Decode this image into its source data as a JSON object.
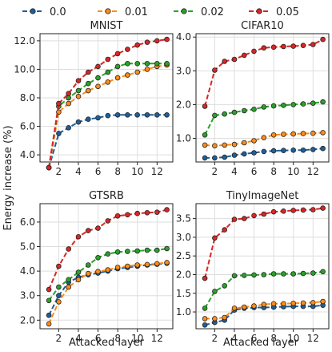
{
  "figure": {
    "ylabel": "Energy increase (%)",
    "xlabel": "Attacked layer"
  },
  "legend": [
    {
      "name": "0.0",
      "color": "#1f5f99"
    },
    {
      "name": "0.01",
      "color": "#ff8c1a"
    },
    {
      "name": "0.02",
      "color": "#2ca02c"
    },
    {
      "name": "0.05",
      "color": "#d62728"
    }
  ],
  "chart_data": [
    {
      "type": "line",
      "title": "MNIST",
      "x": [
        1,
        2,
        3,
        4,
        5,
        6,
        7,
        8,
        9,
        10,
        11,
        12,
        13
      ],
      "xticks": [
        2,
        4,
        6,
        8,
        10,
        12
      ],
      "xlim": [
        0.1,
        13.6
      ],
      "ylim": [
        3.5,
        12.5
      ],
      "yticks": [
        4.0,
        6.0,
        8.0,
        10.0,
        12.0
      ],
      "ytick_labels": [
        "4.0",
        "6.0",
        "8.0",
        "10.0",
        "12.0"
      ],
      "grid": true,
      "series": [
        {
          "name": "0.0",
          "values": [
            3.1,
            5.5,
            5.9,
            6.3,
            6.5,
            6.6,
            6.75,
            6.8,
            6.8,
            6.8,
            6.8,
            6.8,
            6.8
          ]
        },
        {
          "name": "0.01",
          "values": [
            3.1,
            7.0,
            7.6,
            8.1,
            8.5,
            8.8,
            9.1,
            9.4,
            9.6,
            9.8,
            10.0,
            10.2,
            10.3
          ]
        },
        {
          "name": "0.02",
          "values": [
            3.1,
            7.4,
            8.0,
            8.5,
            9.0,
            9.4,
            9.8,
            10.2,
            10.4,
            10.4,
            10.4,
            10.4,
            10.4
          ]
        },
        {
          "name": "0.05",
          "values": [
            3.1,
            7.6,
            8.3,
            9.2,
            9.8,
            10.2,
            10.7,
            11.1,
            11.4,
            11.7,
            11.9,
            12.0,
            12.1
          ]
        }
      ]
    },
    {
      "type": "line",
      "title": "CIFAR10",
      "x": [
        1,
        2,
        3,
        4,
        5,
        6,
        7,
        8,
        9,
        10,
        11,
        12,
        13
      ],
      "xticks": [
        2,
        4,
        6,
        8,
        10,
        12
      ],
      "xlim": [
        0.1,
        13.6
      ],
      "ylim": [
        0.3,
        4.1
      ],
      "yticks": [
        1.0,
        2.0,
        3.0,
        4.0
      ],
      "ytick_labels": [
        "1.0",
        "2.0",
        "3.0",
        "4.0"
      ],
      "grid": true,
      "series": [
        {
          "name": "0.0",
          "values": [
            0.42,
            0.42,
            0.44,
            0.5,
            0.54,
            0.57,
            0.61,
            0.63,
            0.64,
            0.65,
            0.65,
            0.67,
            0.7
          ]
        },
        {
          "name": "0.01",
          "values": [
            0.8,
            0.78,
            0.8,
            0.82,
            0.87,
            0.93,
            1.02,
            1.1,
            1.12,
            1.13,
            1.14,
            1.15,
            1.17
          ]
        },
        {
          "name": "0.02",
          "values": [
            1.1,
            1.68,
            1.72,
            1.77,
            1.82,
            1.86,
            1.93,
            1.96,
            1.98,
            2.0,
            2.02,
            2.04,
            2.08
          ]
        },
        {
          "name": "0.05",
          "values": [
            1.95,
            3.02,
            3.28,
            3.34,
            3.46,
            3.58,
            3.68,
            3.7,
            3.72,
            3.73,
            3.75,
            3.78,
            3.93
          ]
        }
      ]
    },
    {
      "type": "line",
      "title": "GTSRB",
      "x": [
        1,
        2,
        3,
        4,
        5,
        6,
        7,
        8,
        9,
        10,
        11,
        12,
        13
      ],
      "xticks": [
        2,
        4,
        6,
        8,
        10,
        12
      ],
      "xlim": [
        0.1,
        13.6
      ],
      "ylim": [
        1.65,
        6.75
      ],
      "yticks": [
        2.0,
        3.0,
        4.0,
        5.0,
        6.0
      ],
      "ytick_labels": [
        "2.0",
        "3.0",
        "4.0",
        "5.0",
        "6.0"
      ],
      "grid": true,
      "series": [
        {
          "name": "0.0",
          "values": [
            2.2,
            3.0,
            3.55,
            3.75,
            3.85,
            3.92,
            4.0,
            4.1,
            4.15,
            4.2,
            4.25,
            4.28,
            4.32
          ]
        },
        {
          "name": "0.01",
          "values": [
            1.85,
            2.75,
            3.35,
            3.65,
            3.9,
            3.98,
            4.05,
            4.15,
            4.2,
            4.25,
            4.27,
            4.3,
            4.35
          ]
        },
        {
          "name": "0.02",
          "values": [
            2.8,
            3.35,
            3.65,
            3.95,
            4.25,
            4.55,
            4.7,
            4.78,
            4.8,
            4.82,
            4.85,
            4.85,
            4.92
          ]
        },
        {
          "name": "0.05",
          "values": [
            3.25,
            4.2,
            4.9,
            5.4,
            5.65,
            5.75,
            6.05,
            6.25,
            6.3,
            6.35,
            6.38,
            6.4,
            6.5
          ]
        }
      ]
    },
    {
      "type": "line",
      "title": "TinyImageNet",
      "x": [
        1,
        2,
        3,
        4,
        5,
        6,
        7,
        8,
        9,
        10,
        11,
        12,
        13
      ],
      "xticks": [
        2,
        4,
        6,
        8,
        10,
        12
      ],
      "xlim": [
        0.1,
        13.6
      ],
      "ylim": [
        0.55,
        3.9
      ],
      "yticks": [
        1.0,
        1.5,
        2.0,
        2.5,
        3.0,
        3.5
      ],
      "ytick_labels": [
        "1.0",
        "1.5",
        "2.0",
        "2.5",
        "3.0",
        "3.5"
      ],
      "grid": true,
      "series": [
        {
          "name": "0.0",
          "values": [
            0.65,
            0.72,
            0.78,
            1.05,
            1.1,
            1.12,
            1.12,
            1.13,
            1.14,
            1.15,
            1.15,
            1.15,
            1.18
          ]
        },
        {
          "name": "0.01",
          "values": [
            0.82,
            0.82,
            0.85,
            1.1,
            1.13,
            1.16,
            1.2,
            1.22,
            1.22,
            1.23,
            1.24,
            1.25,
            1.28
          ]
        },
        {
          "name": "0.02",
          "values": [
            1.1,
            1.55,
            1.7,
            1.97,
            1.98,
            1.99,
            2.0,
            2.02,
            2.02,
            2.02,
            2.03,
            2.04,
            2.08
          ]
        },
        {
          "name": "0.05",
          "values": [
            1.9,
            2.98,
            3.2,
            3.48,
            3.5,
            3.58,
            3.62,
            3.68,
            3.7,
            3.72,
            3.73,
            3.74,
            3.78
          ]
        }
      ]
    }
  ]
}
